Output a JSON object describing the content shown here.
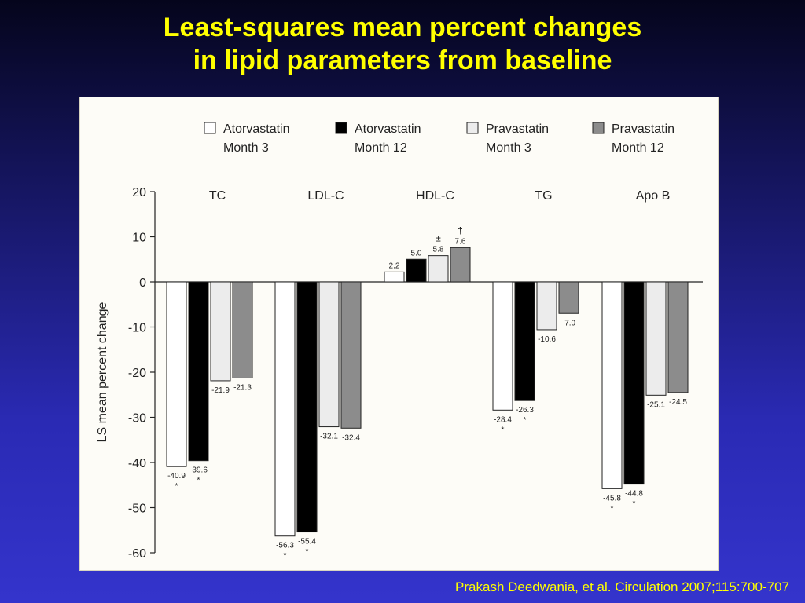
{
  "slide": {
    "title_line1": "Least-squares mean percent changes",
    "title_line2": "in lipid parameters from baseline",
    "citation": "Prakash Deedwania, et al. Circulation 2007;115:700-707"
  },
  "chart_data": {
    "type": "bar",
    "ylabel": "LS mean percent change",
    "ylim": [
      -60,
      20
    ],
    "yticks": [
      20,
      10,
      0,
      -10,
      -20,
      -30,
      -40,
      -50,
      -60
    ],
    "ytick_labels": [
      "20",
      "10",
      "0",
      "-10",
      "-20",
      "-30",
      "-40",
      "-50",
      "-60"
    ],
    "categories": [
      "TC",
      "LDL-C",
      "HDL-C",
      "TG",
      "Apo B"
    ],
    "grid": false,
    "legend_position": "top",
    "series": [
      {
        "name_line1": "Atorvastatin",
        "name_line2": "Month 3",
        "fill": "#ffffff",
        "values": [
          -40.9,
          -56.3,
          2.2,
          -28.4,
          -45.8
        ],
        "labels": [
          "-40.9",
          "-56.3",
          "2.2",
          "-28.4",
          "-45.8"
        ],
        "marks": [
          "*",
          "*",
          "",
          "*",
          "*"
        ]
      },
      {
        "name_line1": "Atorvastatin",
        "name_line2": "Month 12",
        "fill": "#000000",
        "values": [
          -39.6,
          -55.4,
          5.0,
          -26.3,
          -44.8
        ],
        "labels": [
          "-39.6",
          "-55.4",
          "5.0",
          "-26.3",
          "-44.8"
        ],
        "marks": [
          "*",
          "*",
          "",
          "*",
          "*"
        ]
      },
      {
        "name_line1": "Pravastatin",
        "name_line2": "Month 3",
        "fill": "#ececec",
        "values": [
          -21.9,
          -32.1,
          5.8,
          -10.6,
          -25.1
        ],
        "labels": [
          "-21.9",
          "-32.1",
          "5.8",
          "-10.6",
          "-25.1"
        ],
        "marks": [
          "",
          "",
          "±",
          "",
          ""
        ]
      },
      {
        "name_line1": "Pravastatin",
        "name_line2": "Month 12",
        "fill": "#8c8c8c",
        "values": [
          -21.3,
          -32.4,
          7.6,
          -7.0,
          -24.5
        ],
        "labels": [
          "-21.3",
          "-32.4",
          "7.6",
          "-7.0",
          "-24.5"
        ],
        "marks": [
          "",
          "",
          "†",
          "",
          ""
        ]
      }
    ]
  }
}
